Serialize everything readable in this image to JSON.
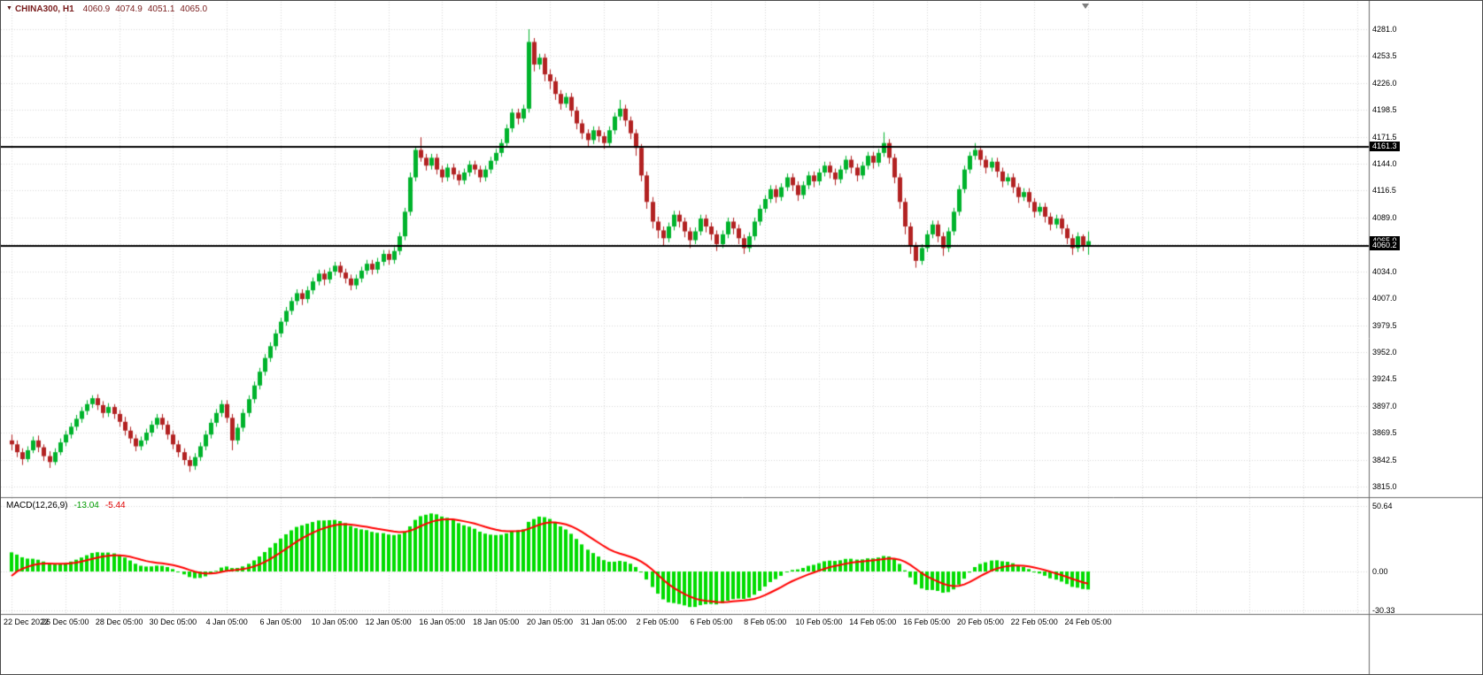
{
  "header": {
    "symbol": "CHINA300, H1",
    "open": "4060.9",
    "high": "4074.9",
    "low": "4051.1",
    "close": "4065.0"
  },
  "chart_data": {
    "type": "candlestick",
    "title": "CHINA300 H1 candlestick chart with MACD(12,26,9) indicator",
    "instrument": "CHINA300",
    "timeframe": "H1",
    "price_axis": {
      "top_price": 4281.0,
      "bottom_price": 3815.0,
      "ticks": [
        "4281.0",
        "4253.5",
        "4226.0",
        "4198.5",
        "4171.5",
        "4144.0",
        "4116.5",
        "4089.0",
        "4061.5",
        "4034.0",
        "4007.0",
        "3979.5",
        "3952.0",
        "3924.5",
        "3897.0",
        "3869.5",
        "3842.5",
        "3815.0"
      ]
    },
    "time_axis": {
      "candles_per_label": 10,
      "labels": [
        "22 Dec 2022",
        "26 Dec 05:00",
        "28 Dec 05:00",
        "30 Dec 05:00",
        "4 Jan 05:00",
        "6 Jan 05:00",
        "10 Jan 05:00",
        "12 Jan 05:00",
        "16 Jan 05:00",
        "18 Jan 05:00",
        "20 Jan 05:00",
        "31 Jan 05:00",
        "2 Feb 05:00",
        "6 Feb 05:00",
        "8 Feb 05:00",
        "10 Feb 05:00",
        "14 Feb 05:00",
        "16 Feb 05:00",
        "20 Feb 05:00",
        "22 Feb 05:00",
        "24 Feb 05:00"
      ]
    },
    "hlines": [
      {
        "price": 4161.3,
        "label": "4161.3"
      },
      {
        "price": 4060.2,
        "label": "4060.2"
      }
    ],
    "current_price": {
      "price": 4065.0,
      "label": "4065.0"
    },
    "macd": {
      "name": "MACD(12,26,9)",
      "value": "-13.04",
      "signal_value": "-5.44",
      "params": {
        "fast": 12,
        "slow": 26,
        "signal": 9
      },
      "ticks": [
        {
          "v": 50.64,
          "label": "50.64"
        },
        {
          "v": 0,
          "label": "0.00"
        },
        {
          "v": -30.33,
          "label": "-30.33"
        }
      ]
    },
    "colors": {
      "bull": "#00b32c",
      "bear": "#b22222",
      "histogram": "#00dc00",
      "signal_line": "#ff0000",
      "hline": "#000000",
      "grid": "#d9d9d9",
      "tag_bg": "#000000",
      "tag_text": "#ffffff"
    },
    "candles": [
      [
        3862,
        3868,
        3852,
        3858
      ],
      [
        3858,
        3862,
        3845,
        3850
      ],
      [
        3850,
        3854,
        3837,
        3843
      ],
      [
        3843,
        3856,
        3840,
        3852
      ],
      [
        3852,
        3866,
        3849,
        3862
      ],
      [
        3862,
        3867,
        3850,
        3855
      ],
      [
        3855,
        3858,
        3841,
        3846
      ],
      [
        3846,
        3851,
        3834,
        3840
      ],
      [
        3840,
        3854,
        3837,
        3850
      ],
      [
        3850,
        3864,
        3847,
        3860
      ],
      [
        3860,
        3872,
        3856,
        3868
      ],
      [
        3868,
        3880,
        3864,
        3876
      ],
      [
        3876,
        3888,
        3872,
        3884
      ],
      [
        3884,
        3896,
        3880,
        3892
      ],
      [
        3892,
        3903,
        3888,
        3899
      ],
      [
        3899,
        3908,
        3895,
        3905
      ],
      [
        3905,
        3909,
        3893,
        3898
      ],
      [
        3898,
        3902,
        3885,
        3890
      ],
      [
        3890,
        3900,
        3886,
        3896
      ],
      [
        3896,
        3899,
        3884,
        3889
      ],
      [
        3889,
        3893,
        3876,
        3881
      ],
      [
        3881,
        3886,
        3867,
        3872
      ],
      [
        3872,
        3876,
        3859,
        3864
      ],
      [
        3864,
        3868,
        3851,
        3856
      ],
      [
        3856,
        3866,
        3852,
        3862
      ],
      [
        3862,
        3874,
        3858,
        3870
      ],
      [
        3870,
        3882,
        3866,
        3878
      ],
      [
        3878,
        3889,
        3874,
        3885
      ],
      [
        3885,
        3889,
        3873,
        3878
      ],
      [
        3878,
        3882,
        3863,
        3868
      ],
      [
        3868,
        3872,
        3853,
        3858
      ],
      [
        3858,
        3862,
        3845,
        3850
      ],
      [
        3850,
        3854,
        3837,
        3842
      ],
      [
        3842,
        3846,
        3830,
        3836
      ],
      [
        3836,
        3849,
        3832,
        3845
      ],
      [
        3845,
        3860,
        3841,
        3856
      ],
      [
        3856,
        3872,
        3852,
        3868
      ],
      [
        3868,
        3884,
        3864,
        3880
      ],
      [
        3880,
        3894,
        3876,
        3890
      ],
      [
        3890,
        3903,
        3886,
        3899
      ],
      [
        3899,
        3903,
        3880,
        3885
      ],
      [
        3885,
        3889,
        3852,
        3862
      ],
      [
        3862,
        3879,
        3858,
        3875
      ],
      [
        3875,
        3894,
        3871,
        3890
      ],
      [
        3890,
        3908,
        3886,
        3904
      ],
      [
        3904,
        3922,
        3900,
        3918
      ],
      [
        3918,
        3936,
        3914,
        3932
      ],
      [
        3932,
        3950,
        3928,
        3946
      ],
      [
        3946,
        3962,
        3942,
        3958
      ],
      [
        3958,
        3975,
        3954,
        3971
      ],
      [
        3971,
        3987,
        3967,
        3983
      ],
      [
        3983,
        3998,
        3979,
        3994
      ],
      [
        3994,
        4008,
        3990,
        4004
      ],
      [
        4004,
        4016,
        4000,
        4012
      ],
      [
        4012,
        4016,
        4000,
        4006
      ],
      [
        4006,
        4019,
        4002,
        4015
      ],
      [
        4015,
        4028,
        4011,
        4024
      ],
      [
        4024,
        4036,
        4020,
        4032
      ],
      [
        4032,
        4036,
        4020,
        4026
      ],
      [
        4026,
        4038,
        4022,
        4034
      ],
      [
        4034,
        4044,
        4030,
        4040
      ],
      [
        4040,
        4044,
        4028,
        4033
      ],
      [
        4033,
        4037,
        4022,
        4027
      ],
      [
        4027,
        4031,
        4015,
        4020
      ],
      [
        4020,
        4031,
        4016,
        4027
      ],
      [
        4027,
        4039,
        4023,
        4035
      ],
      [
        4035,
        4046,
        4031,
        4042
      ],
      [
        4042,
        4046,
        4031,
        4036
      ],
      [
        4036,
        4048,
        4032,
        4044
      ],
      [
        4044,
        4056,
        4040,
        4052
      ],
      [
        4052,
        4056,
        4041,
        4046
      ],
      [
        4046,
        4059,
        4042,
        4055
      ],
      [
        4055,
        4074,
        4051,
        4070
      ],
      [
        4070,
        4099,
        4066,
        4095
      ],
      [
        4095,
        4135,
        4091,
        4130
      ],
      [
        4130,
        4162,
        4126,
        4158
      ],
      [
        4158,
        4171,
        4146,
        4150
      ],
      [
        4150,
        4154,
        4137,
        4142
      ],
      [
        4142,
        4154,
        4138,
        4150
      ],
      [
        4150,
        4154,
        4133,
        4138
      ],
      [
        4138,
        4142,
        4125,
        4130
      ],
      [
        4130,
        4144,
        4126,
        4140
      ],
      [
        4140,
        4144,
        4128,
        4133
      ],
      [
        4133,
        4137,
        4122,
        4127
      ],
      [
        4127,
        4139,
        4123,
        4135
      ],
      [
        4135,
        4147,
        4131,
        4143
      ],
      [
        4143,
        4147,
        4133,
        4138
      ],
      [
        4138,
        4142,
        4125,
        4130
      ],
      [
        4130,
        4142,
        4126,
        4138
      ],
      [
        4138,
        4151,
        4134,
        4147
      ],
      [
        4147,
        4159,
        4143,
        4155
      ],
      [
        4155,
        4169,
        4151,
        4165
      ],
      [
        4165,
        4184,
        4161,
        4180
      ],
      [
        4180,
        4200,
        4176,
        4196
      ],
      [
        4196,
        4200,
        4184,
        4190
      ],
      [
        4190,
        4204,
        4186,
        4200
      ],
      [
        4200,
        4281,
        4196,
        4268
      ],
      [
        4268,
        4272,
        4238,
        4245
      ],
      [
        4245,
        4256,
        4240,
        4252
      ],
      [
        4252,
        4256,
        4228,
        4235
      ],
      [
        4235,
        4240,
        4220,
        4228
      ],
      [
        4228,
        4232,
        4209,
        4215
      ],
      [
        4215,
        4219,
        4199,
        4205
      ],
      [
        4205,
        4216,
        4201,
        4212
      ],
      [
        4212,
        4216,
        4192,
        4198
      ],
      [
        4198,
        4202,
        4179,
        4185
      ],
      [
        4185,
        4189,
        4169,
        4175
      ],
      [
        4175,
        4179,
        4161,
        4168
      ],
      [
        4168,
        4182,
        4164,
        4178
      ],
      [
        4178,
        4182,
        4166,
        4172
      ],
      [
        4172,
        4176,
        4159,
        4165
      ],
      [
        4165,
        4182,
        4161,
        4178
      ],
      [
        4178,
        4196,
        4174,
        4192
      ],
      [
        4192,
        4209,
        4188,
        4200
      ],
      [
        4200,
        4204,
        4182,
        4188
      ],
      [
        4188,
        4192,
        4169,
        4175
      ],
      [
        4175,
        4179,
        4152,
        4160
      ],
      [
        4160,
        4164,
        4126,
        4132
      ],
      [
        4132,
        4136,
        4098,
        4105
      ],
      [
        4105,
        4110,
        4078,
        4085
      ],
      [
        4085,
        4090,
        4068,
        4076
      ],
      [
        4076,
        4080,
        4060,
        4068
      ],
      [
        4068,
        4084,
        4064,
        4080
      ],
      [
        4080,
        4096,
        4076,
        4092
      ],
      [
        4092,
        4096,
        4079,
        4085
      ],
      [
        4085,
        4089,
        4069,
        4075
      ],
      [
        4075,
        4079,
        4058,
        4066
      ],
      [
        4066,
        4079,
        4062,
        4075
      ],
      [
        4075,
        4092,
        4071,
        4088
      ],
      [
        4088,
        4092,
        4074,
        4080
      ],
      [
        4080,
        4084,
        4066,
        4072
      ],
      [
        4072,
        4076,
        4055,
        4062
      ],
      [
        4062,
        4076,
        4058,
        4072
      ],
      [
        4072,
        4089,
        4068,
        4085
      ],
      [
        4085,
        4089,
        4072,
        4078
      ],
      [
        4078,
        4082,
        4062,
        4068
      ],
      [
        4068,
        4072,
        4052,
        4058
      ],
      [
        4058,
        4074,
        4054,
        4070
      ],
      [
        4070,
        4089,
        4066,
        4085
      ],
      [
        4085,
        4102,
        4081,
        4098
      ],
      [
        4098,
        4112,
        4094,
        4108
      ],
      [
        4108,
        4122,
        4104,
        4118
      ],
      [
        4118,
        4122,
        4104,
        4110
      ],
      [
        4110,
        4124,
        4106,
        4120
      ],
      [
        4120,
        4134,
        4116,
        4130
      ],
      [
        4130,
        4134,
        4116,
        4122
      ],
      [
        4122,
        4126,
        4106,
        4112
      ],
      [
        4112,
        4126,
        4108,
        4122
      ],
      [
        4122,
        4136,
        4118,
        4132
      ],
      [
        4132,
        4136,
        4120,
        4126
      ],
      [
        4126,
        4139,
        4122,
        4135
      ],
      [
        4135,
        4146,
        4131,
        4142
      ],
      [
        4142,
        4146,
        4129,
        4135
      ],
      [
        4135,
        4139,
        4122,
        4128
      ],
      [
        4128,
        4142,
        4124,
        4138
      ],
      [
        4138,
        4152,
        4134,
        4148
      ],
      [
        4148,
        4152,
        4134,
        4140
      ],
      [
        4140,
        4144,
        4126,
        4132
      ],
      [
        4132,
        4146,
        4128,
        4142
      ],
      [
        4142,
        4156,
        4138,
        4152
      ],
      [
        4152,
        4156,
        4139,
        4145
      ],
      [
        4145,
        4159,
        4141,
        4155
      ],
      [
        4155,
        4176,
        4151,
        4165
      ],
      [
        4165,
        4169,
        4144,
        4150
      ],
      [
        4150,
        4154,
        4124,
        4130
      ],
      [
        4130,
        4134,
        4098,
        4105
      ],
      [
        4105,
        4109,
        4072,
        4080
      ],
      [
        4080,
        4084,
        4052,
        4060
      ],
      [
        4060,
        4064,
        4038,
        4045
      ],
      [
        4045,
        4062,
        4041,
        4058
      ],
      [
        4058,
        4076,
        4054,
        4072
      ],
      [
        4072,
        4086,
        4068,
        4082
      ],
      [
        4082,
        4086,
        4064,
        4070
      ],
      [
        4070,
        4074,
        4050,
        4058
      ],
      [
        4058,
        4079,
        4054,
        4075
      ],
      [
        4075,
        4099,
        4071,
        4095
      ],
      [
        4095,
        4122,
        4091,
        4118
      ],
      [
        4118,
        4142,
        4114,
        4138
      ],
      [
        4138,
        4156,
        4134,
        4152
      ],
      [
        4152,
        4165,
        4148,
        4158
      ],
      [
        4158,
        4162,
        4142,
        4148
      ],
      [
        4148,
        4152,
        4134,
        4140
      ],
      [
        4140,
        4150,
        4136,
        4146
      ],
      [
        4146,
        4150,
        4130,
        4136
      ],
      [
        4136,
        4140,
        4120,
        4126
      ],
      [
        4126,
        4134,
        4122,
        4130
      ],
      [
        4130,
        4134,
        4114,
        4120
      ],
      [
        4120,
        4124,
        4104,
        4110
      ],
      [
        4110,
        4119,
        4106,
        4115
      ],
      [
        4115,
        4119,
        4099,
        4105
      ],
      [
        4105,
        4109,
        4089,
        4095
      ],
      [
        4095,
        4104,
        4091,
        4100
      ],
      [
        4100,
        4104,
        4084,
        4090
      ],
      [
        4090,
        4094,
        4076,
        4082
      ],
      [
        4082,
        4092,
        4078,
        4088
      ],
      [
        4088,
        4092,
        4072,
        4078
      ],
      [
        4078,
        4082,
        4062,
        4068
      ],
      [
        4068,
        4072,
        4051,
        4058
      ],
      [
        4058,
        4074,
        4054,
        4070
      ],
      [
        4070,
        4072,
        4055,
        4061
      ],
      [
        4060.9,
        4074.9,
        4051.1,
        4065.0
      ]
    ]
  }
}
